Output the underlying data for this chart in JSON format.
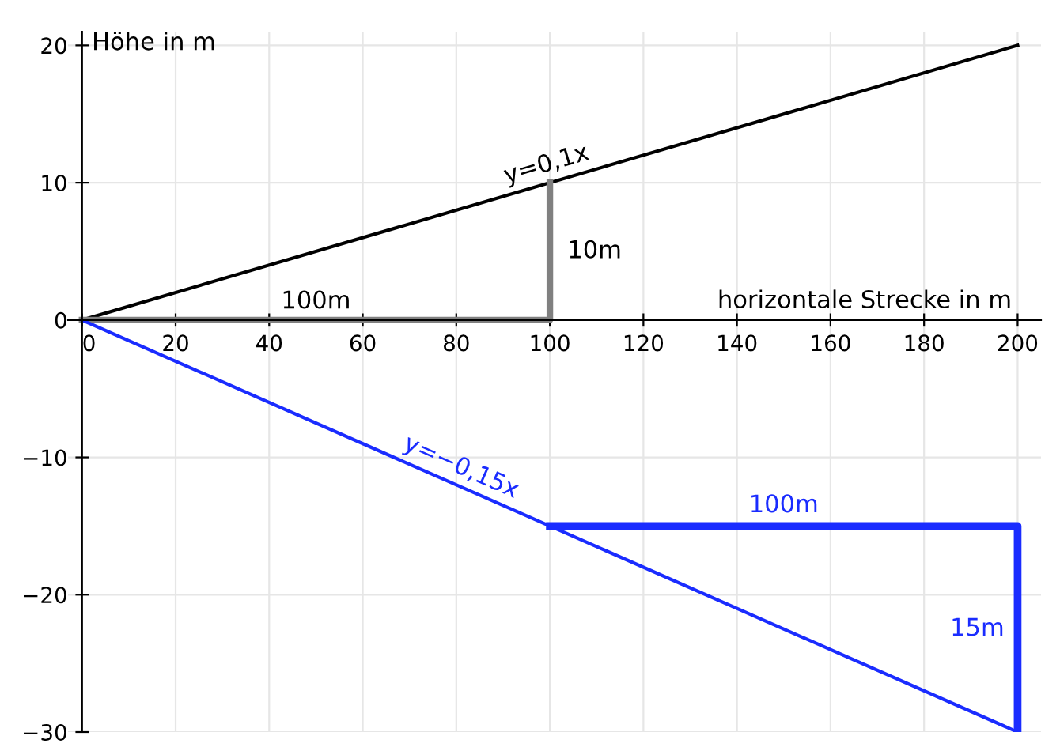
{
  "chart_data": {
    "type": "line",
    "xlabel": "horizontale Strecke in m",
    "ylabel": "Höhe in m",
    "xlim": [
      -3,
      205
    ],
    "ylim": [
      -30,
      21
    ],
    "xticks": [
      0,
      20,
      40,
      60,
      80,
      100,
      120,
      140,
      160,
      180,
      200
    ],
    "yticks": [
      {
        "value": -30,
        "label": "−30"
      },
      {
        "value": -20,
        "label": "−20"
      },
      {
        "value": -10,
        "label": "−10"
      },
      0,
      10,
      20
    ],
    "grid": true,
    "line_style": "solid",
    "series": [
      {
        "color": "#000000",
        "x": [
          0,
          200
        ],
        "values": [
          0,
          20
        ]
      },
      {
        "color": "#808080",
        "x": [
          0,
          100,
          100
        ],
        "values": [
          0,
          0,
          10
        ]
      },
      {
        "color": "#1a2cff",
        "x": [
          0,
          200
        ],
        "values": [
          0,
          -30
        ]
      },
      {
        "color": "#1a2cff",
        "x": [
          100,
          200,
          200
        ],
        "values": [
          -15,
          -15,
          -30
        ]
      }
    ],
    "annotations": [
      {
        "text": "y=0,1x",
        "x": 100,
        "y": 10
      },
      {
        "text": "10m",
        "x": 100,
        "y": 5
      },
      {
        "text": "100m",
        "x": 50,
        "y": 0
      },
      {
        "text": "y=−0,15x",
        "x": 80,
        "y": -12
      },
      {
        "text": "100m",
        "x": 150,
        "y": -15
      },
      {
        "text": "15m",
        "x": 200,
        "y": -22.5
      }
    ]
  }
}
